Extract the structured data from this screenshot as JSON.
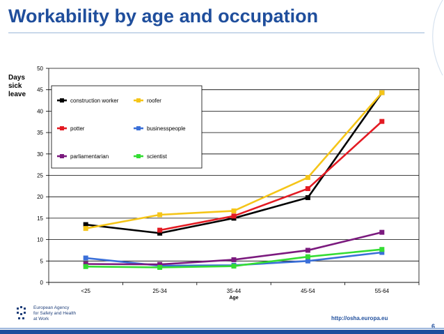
{
  "slide": {
    "title": "Workability by age and occupation",
    "url": "http://osha.europa.eu",
    "page_number": "6",
    "agency_lines": [
      "European Agency",
      "for Safety and Health",
      "at Work"
    ]
  },
  "colors": {
    "title": "#1f4e9c",
    "grid": "#000000"
  },
  "chart_data": {
    "type": "line",
    "title": "",
    "ylabel": "Days sick leave",
    "ylabel_lines": [
      "Days",
      "sick",
      "leave"
    ],
    "xlabel": "Age",
    "categories": [
      "<25",
      "25-34",
      "35-44",
      "45-54",
      "55-64"
    ],
    "ylim": [
      0,
      50
    ],
    "yticks": [
      0,
      5,
      10,
      15,
      20,
      25,
      30,
      35,
      40,
      45,
      50
    ],
    "grid": true,
    "legend_position": "top-left",
    "series": [
      {
        "name": "construction worker",
        "color": "#000000",
        "values": [
          13.5,
          11.5,
          15.0,
          19.8,
          44.3
        ]
      },
      {
        "name": "roofer",
        "color": "#f5c518",
        "values": [
          12.6,
          15.8,
          16.7,
          24.5,
          44.3
        ]
      },
      {
        "name": "potter",
        "color": "#e31b23",
        "values": [
          null,
          12.2,
          15.5,
          21.9,
          37.6
        ]
      },
      {
        "name": "businesspeople",
        "color": "#3a6fd8",
        "values": [
          5.7,
          3.9,
          4.0,
          5.0,
          7.0
        ]
      },
      {
        "name": "parliamentarian",
        "color": "#7b1a7e",
        "values": [
          4.3,
          4.2,
          5.3,
          7.5,
          11.7
        ]
      },
      {
        "name": "scientist",
        "color": "#33dd33",
        "values": [
          3.7,
          3.5,
          3.8,
          6.0,
          7.7
        ]
      }
    ]
  }
}
